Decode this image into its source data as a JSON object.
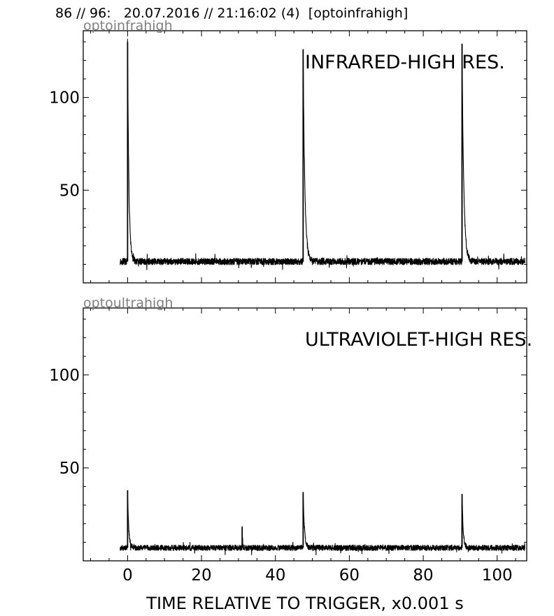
{
  "header": {
    "text": "86 // 96:   20.07.2016 // 21:16:02 (4)  [optoinfrahigh]"
  },
  "xlabel": "TIME RELATIVE TO TRIGGER,   x0.001 s",
  "colors": {
    "trace": "#000000",
    "channel_label": "#808080",
    "axes": "#000000"
  },
  "chart_data": [
    {
      "type": "line",
      "channel": "optoinfrahigh",
      "title": "INFRARED-HIGH RES.",
      "xlim": [
        -12,
        108
      ],
      "ylim": [
        0,
        136
      ],
      "xticks": [
        0,
        20,
        40,
        60,
        80,
        100
      ],
      "yticks": [
        50,
        100
      ],
      "show_xticklabels": false,
      "baseline": 11.5,
      "noise": 1.8,
      "x_range": [
        -2,
        107.5
      ],
      "peaks": [
        {
          "x": 0.0,
          "y": 130,
          "decay": 0.35
        },
        {
          "x": 47.5,
          "y": 126,
          "decay": 0.45
        },
        {
          "x": 90.5,
          "y": 129,
          "decay": 0.45
        }
      ]
    },
    {
      "type": "line",
      "channel": "optoultrahigh",
      "title": "ULTRAVIOLET-HIGH RES.",
      "xlim": [
        -12,
        108
      ],
      "ylim": [
        0,
        136
      ],
      "xticks": [
        0,
        20,
        40,
        60,
        80,
        100
      ],
      "yticks": [
        50,
        100
      ],
      "show_xticklabels": true,
      "baseline": 7,
      "noise": 1.5,
      "x_range": [
        -2,
        107.5
      ],
      "peaks": [
        {
          "x": 0.0,
          "y": 38,
          "decay": 0.3
        },
        {
          "x": 31.0,
          "y": 18,
          "decay": 0.1
        },
        {
          "x": 47.5,
          "y": 37,
          "decay": 0.35
        },
        {
          "x": 90.5,
          "y": 36,
          "decay": 0.3
        }
      ]
    }
  ]
}
